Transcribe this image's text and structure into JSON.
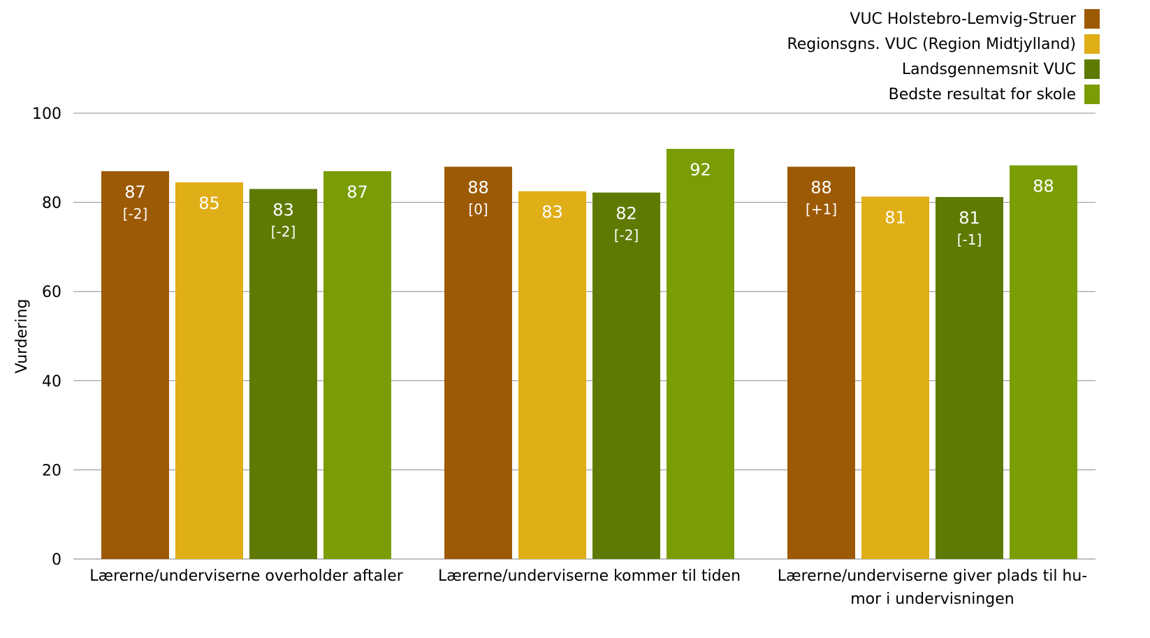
{
  "chart_data": {
    "type": "bar",
    "ylabel": "Vurdering",
    "ylim": [
      0,
      100
    ],
    "yticks": [
      0,
      20,
      40,
      60,
      80,
      100
    ],
    "grid": true,
    "legend_position": "top-right",
    "categories": [
      [
        "Lærerne/underviserne overholder aftaler"
      ],
      [
        "Lærerne/underviserne kommer til tiden"
      ],
      [
        "Lærerne/underviserne giver plads til hu-",
        "mor i undervisningen"
      ]
    ],
    "series": [
      {
        "name": "VUC Holstebro-Lemvig-Struer",
        "color": "#9c5a05",
        "values": [
          87,
          88,
          88
        ],
        "labels": [
          "87",
          "88",
          "88"
        ],
        "deltas": [
          "[-2]",
          "[0]",
          "[+1]"
        ]
      },
      {
        "name": "Regionsgns. VUC (Region Midtjylland)",
        "color": "#e0ae17",
        "values": [
          84.5,
          82.5,
          81.3
        ],
        "labels": [
          "85",
          "83",
          "81"
        ],
        "deltas": [
          "",
          "",
          ""
        ]
      },
      {
        "name": "Landsgennemsnit VUC",
        "color": "#5f7a03",
        "values": [
          83,
          82.2,
          81.2
        ],
        "labels": [
          "83",
          "82",
          "81"
        ],
        "deltas": [
          "[-2]",
          "[-2]",
          "[-1]"
        ]
      },
      {
        "name": "Bedste resultat for skole",
        "color": "#7b9d04",
        "values": [
          87,
          92,
          88.3
        ],
        "labels": [
          "87",
          "92",
          "88"
        ],
        "deltas": [
          "",
          "",
          ""
        ]
      }
    ]
  }
}
